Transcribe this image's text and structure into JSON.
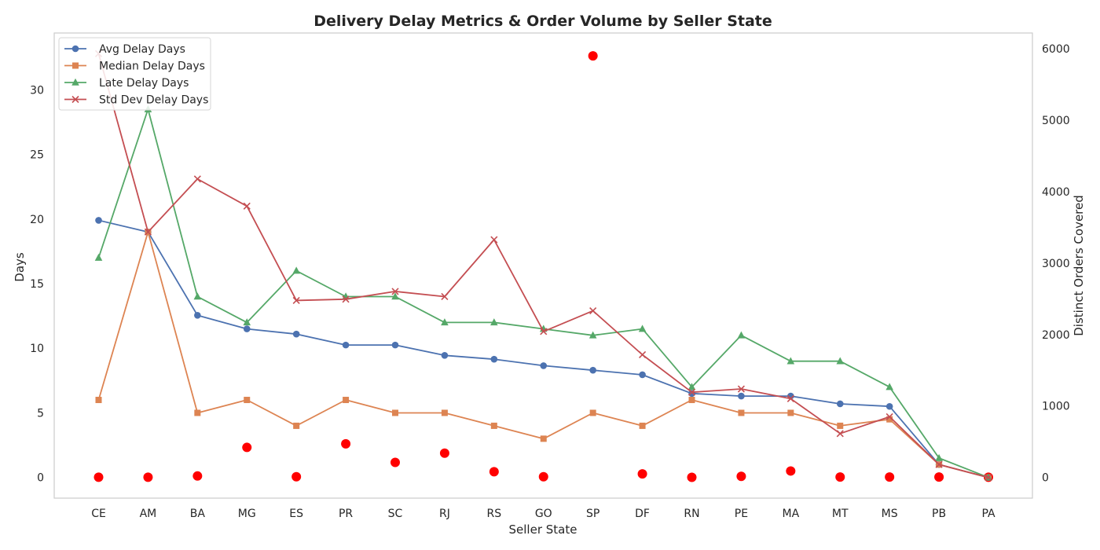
{
  "chart_data": {
    "type": "line",
    "title": "Delivery Delay Metrics & Order Volume by Seller State",
    "xlabel": "Seller State",
    "ylabel": "Days",
    "y2label": "Distinct Orders Covered",
    "categories": [
      "CE",
      "AM",
      "BA",
      "MG",
      "ES",
      "PR",
      "SC",
      "RJ",
      "RS",
      "GO",
      "SP",
      "DF",
      "RN",
      "PE",
      "MA",
      "MT",
      "MS",
      "PB",
      "PA"
    ],
    "ylim": [
      -1.6,
      34.4
    ],
    "y2lim": [
      -290,
      6220
    ],
    "yticks": [
      0,
      5,
      10,
      15,
      20,
      25,
      30
    ],
    "y2ticks": [
      0,
      1000,
      2000,
      3000,
      4000,
      5000,
      6000
    ],
    "grid": false,
    "legend_position": "top-left",
    "series": [
      {
        "name": "Avg Delay Days",
        "marker": "circle",
        "color": "#4c72b0",
        "values": [
          19.9,
          19.0,
          12.55,
          11.5,
          11.1,
          10.25,
          10.25,
          9.45,
          9.15,
          8.65,
          8.3,
          7.95,
          6.5,
          6.3,
          6.3,
          5.7,
          5.5,
          1.0,
          0.0
        ]
      },
      {
        "name": "Median Delay Days",
        "marker": "square",
        "color": "#dd8452",
        "values": [
          6.0,
          19.0,
          5.0,
          6.0,
          4.0,
          6.0,
          5.0,
          5.0,
          4.0,
          3.0,
          5.0,
          4.0,
          6.0,
          5.0,
          5.0,
          4.0,
          4.5,
          1.0,
          0.0
        ]
      },
      {
        "name": "Late Delay Days",
        "marker": "triangle",
        "color": "#55a868",
        "values": [
          17.0,
          28.5,
          14.0,
          12.0,
          16.0,
          14.0,
          14.0,
          12.0,
          12.0,
          11.5,
          11.0,
          11.5,
          7.0,
          11.0,
          9.0,
          9.0,
          7.0,
          1.5,
          0.0
        ]
      },
      {
        "name": "Std Dev Delay Days",
        "marker": "x",
        "color": "#c44e52",
        "values": [
          32.8,
          19.0,
          23.1,
          21.0,
          13.7,
          13.8,
          14.4,
          14.0,
          18.4,
          11.3,
          12.9,
          9.5,
          6.6,
          6.85,
          6.1,
          3.4,
          4.7,
          1.0,
          0.0
        ]
      }
    ],
    "scatter": {
      "color": "#ff0000",
      "axis": "right",
      "values": [
        3,
        3,
        20,
        420,
        10,
        470,
        210,
        340,
        80,
        10,
        5900,
        50,
        2,
        15,
        90,
        5,
        5,
        5,
        3
      ]
    }
  }
}
